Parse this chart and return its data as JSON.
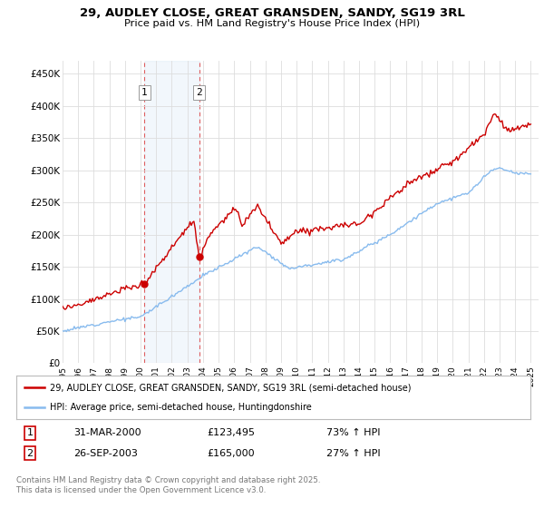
{
  "title_line1": "29, AUDLEY CLOSE, GREAT GRANSDEN, SANDY, SG19 3RL",
  "title_line2": "Price paid vs. HM Land Registry's House Price Index (HPI)",
  "ylim": [
    0,
    470000
  ],
  "yticks": [
    0,
    50000,
    100000,
    150000,
    200000,
    250000,
    300000,
    350000,
    400000,
    450000
  ],
  "ytick_labels": [
    "£0",
    "£50K",
    "£100K",
    "£150K",
    "£200K",
    "£250K",
    "£300K",
    "£350K",
    "£400K",
    "£450K"
  ],
  "background_color": "#ffffff",
  "plot_bg_color": "#ffffff",
  "grid_color": "#dddddd",
  "red_color": "#cc0000",
  "blue_color": "#88bbee",
  "legend_label_red": "29, AUDLEY CLOSE, GREAT GRANSDEN, SANDY, SG19 3RL (semi-detached house)",
  "legend_label_blue": "HPI: Average price, semi-detached house, Huntingdonshire",
  "transaction1_date": 2000.25,
  "transaction2_date": 2003.75,
  "transaction1_price": 123495,
  "transaction2_price": 165000,
  "footnote": "Contains HM Land Registry data © Crown copyright and database right 2025.\nThis data is licensed under the Open Government Licence v3.0.",
  "xmin": 1995.0,
  "xmax": 2025.5,
  "xticks": [
    1995,
    1996,
    1997,
    1998,
    1999,
    2000,
    2001,
    2002,
    2003,
    2004,
    2005,
    2006,
    2007,
    2008,
    2009,
    2010,
    2011,
    2012,
    2013,
    2014,
    2015,
    2016,
    2017,
    2018,
    2019,
    2020,
    2021,
    2022,
    2023,
    2024,
    2025
  ]
}
